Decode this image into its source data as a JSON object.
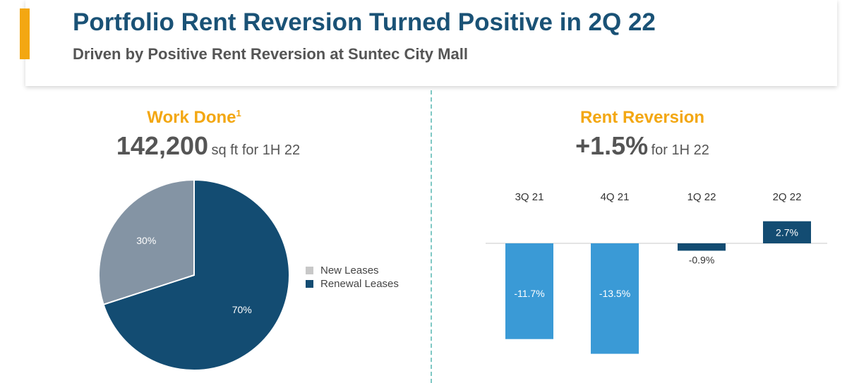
{
  "header": {
    "title": "Portfolio Rent Reversion Turned Positive in 2Q 22",
    "subtitle": "Driven by Positive Rent Reversion at Suntec City Mall"
  },
  "colors": {
    "accent": "#f3a712",
    "title": "#1a5276",
    "new_leases": "#8494a4",
    "renewal_leases": "#134c72",
    "negative_bar": "#3a9ad6",
    "positive_bar": "#134c72",
    "divider": "#7fc8c4"
  },
  "left_panel": {
    "title": "Work Done",
    "footnote_marker": "1",
    "stat_value": "142,200",
    "stat_unit": "sq ft for 1H 22"
  },
  "right_panel": {
    "title": "Rent Reversion",
    "stat_value": "+1.5%",
    "stat_unit": "for 1H 22"
  },
  "chart_data": [
    {
      "type": "pie",
      "slices": [
        {
          "label": "New Leases",
          "value": 30,
          "value_label": "30%"
        },
        {
          "label": "Renewal Leases",
          "value": 70,
          "value_label": "70%"
        }
      ],
      "legend": [
        "New Leases",
        "Renewal Leases"
      ],
      "legend_position": "right"
    },
    {
      "type": "bar",
      "categories": [
        "3Q 21",
        "4Q 21",
        "1Q 22",
        "2Q 22"
      ],
      "values": [
        -11.7,
        -13.5,
        -0.9,
        2.7
      ],
      "value_labels": [
        "-11.7%",
        "-13.5%",
        "-0.9%",
        "2.7%"
      ],
      "category_position": "top",
      "grid": false
    }
  ]
}
